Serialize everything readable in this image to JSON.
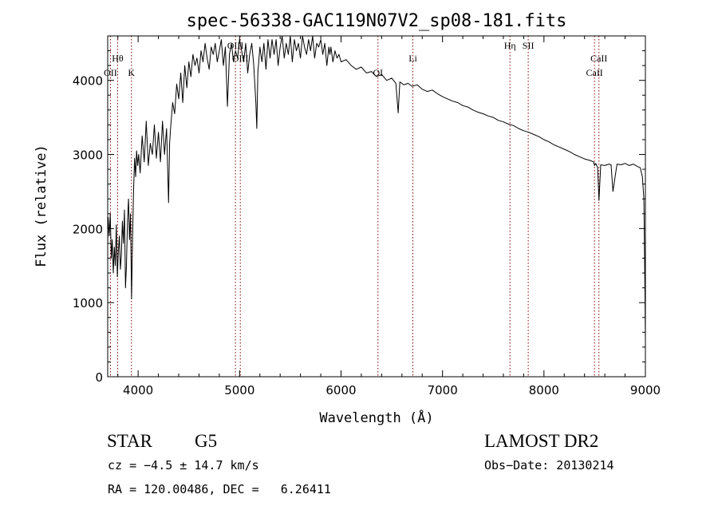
{
  "chart_data": {
    "type": "line",
    "title": "spec-56338-GAC119N07V2_sp08-181.fits",
    "xlabel": "Wavelength (Å)",
    "ylabel": "Flux (relative)",
    "xlim": [
      3700,
      9000
    ],
    "ylim": [
      0,
      4600
    ],
    "x_ticks": [
      4000,
      5000,
      6000,
      7000,
      8000,
      9000
    ],
    "y_ticks": [
      0,
      1000,
      2000,
      3000,
      4000
    ],
    "grid": false,
    "line_color": "#000000",
    "marker_color": "#8b0000",
    "spectral_lines": [
      {
        "label": "Hθ",
        "wavelength": 3798,
        "row": 1
      },
      {
        "label": "OII",
        "wavelength": 3727,
        "row": 2
      },
      {
        "label": "K",
        "wavelength": 3934,
        "row": 2
      },
      {
        "label": "OIII",
        "wavelength": 4959,
        "row": 0
      },
      {
        "label": "OIII",
        "wavelength": 5007,
        "row": 1
      },
      {
        "label": "OI",
        "wavelength": 6364,
        "row": 2
      },
      {
        "label": "Li",
        "wavelength": 6708,
        "row": 1
      },
      {
        "label": "Hη",
        "wavelength": 7665,
        "row": 0
      },
      {
        "label": "SII",
        "wavelength": 7845,
        "row": 0
      },
      {
        "label": "CaII",
        "wavelength": 8542,
        "row": 1
      },
      {
        "label": "CaII",
        "wavelength": 8498,
        "row": 2
      }
    ],
    "series": [
      {
        "x": [
          3700,
          3705,
          3715,
          3725,
          3735,
          3745,
          3755,
          3765,
          3775,
          3785,
          3795,
          3805,
          3815,
          3825,
          3835,
          3845,
          3855,
          3865,
          3875,
          3885,
          3895,
          3905,
          3915,
          3925,
          3935,
          3945,
          3955,
          3965,
          3975,
          3985,
          3995,
          4005,
          4020,
          4040,
          4060,
          4080,
          4100,
          4120,
          4140,
          4160,
          4180,
          4200,
          4220,
          4240,
          4260,
          4280,
          4300,
          4310,
          4320,
          4340,
          4360,
          4380,
          4400,
          4420,
          4440,
          4460,
          4480,
          4500,
          4520,
          4540,
          4560,
          4580,
          4600,
          4620,
          4640,
          4660,
          4680,
          4700,
          4720,
          4740,
          4760,
          4780,
          4800,
          4820,
          4840,
          4860,
          4880,
          4900,
          4920,
          4940,
          4960,
          4980,
          5000,
          5020,
          5040,
          5060,
          5080,
          5100,
          5120,
          5140,
          5160,
          5170,
          5180,
          5200,
          5220,
          5240,
          5260,
          5280,
          5300,
          5320,
          5340,
          5360,
          5380,
          5400,
          5420,
          5440,
          5460,
          5480,
          5500,
          5520,
          5540,
          5560,
          5580,
          5600,
          5620,
          5640,
          5660,
          5680,
          5700,
          5720,
          5740,
          5760,
          5780,
          5800,
          5820,
          5840,
          5860,
          5880,
          5890,
          5900,
          5920,
          5940,
          5960,
          5980,
          6000,
          6050,
          6100,
          6150,
          6200,
          6250,
          6300,
          6350,
          6400,
          6450,
          6500,
          6540,
          6563,
          6580,
          6620,
          6660,
          6700,
          6750,
          6800,
          6850,
          6900,
          6950,
          7000,
          7050,
          7100,
          7150,
          7200,
          7250,
          7300,
          7350,
          7400,
          7450,
          7500,
          7550,
          7600,
          7650,
          7700,
          7750,
          7800,
          7850,
          7900,
          7950,
          8000,
          8050,
          8100,
          8150,
          8200,
          8250,
          8300,
          8350,
          8400,
          8450,
          8490,
          8498,
          8510,
          8530,
          8542,
          8560,
          8600,
          8640,
          8662,
          8680,
          8720,
          8760,
          8800,
          8840,
          8880,
          8920,
          8950,
          8970,
          8985,
          8995,
          9000
        ],
        "y": [
          1800,
          2150,
          1900,
          2200,
          1600,
          1850,
          1400,
          1750,
          1500,
          2050,
          1350,
          1700,
          1900,
          1450,
          1650,
          2100,
          1800,
          2250,
          1200,
          1500,
          2100,
          2400,
          1850,
          2200,
          1050,
          1900,
          2500,
          2950,
          2700,
          3050,
          2850,
          3000,
          2750,
          3250,
          2900,
          3450,
          2850,
          3150,
          3000,
          3400,
          2950,
          3300,
          2900,
          3450,
          3000,
          3350,
          2350,
          3150,
          3350,
          3700,
          3550,
          3950,
          3750,
          4100,
          3700,
          4200,
          3900,
          4250,
          4050,
          4350,
          4200,
          4300,
          4100,
          4400,
          4250,
          4500,
          4300,
          4150,
          4450,
          4350,
          4500,
          4250,
          4400,
          4550,
          4200,
          4450,
          3650,
          4350,
          4500,
          4250,
          4400,
          4300,
          4550,
          4400,
          4250,
          4500,
          4100,
          4350,
          4500,
          4200,
          3700,
          3350,
          4100,
          4450,
          4250,
          4500,
          4150,
          4550,
          4300,
          4550,
          4350,
          4550,
          4200,
          4450,
          4600,
          4300,
          4500,
          4350,
          4600,
          4250,
          4550,
          4400,
          4500,
          4300,
          4600,
          4450,
          4350,
          4550,
          4400,
          4600,
          4300,
          4500,
          4450,
          4550,
          4350,
          4500,
          4200,
          4450,
          4350,
          4450,
          4250,
          4400,
          4300,
          4350,
          4250,
          4280,
          4200,
          4150,
          4180,
          4100,
          4120,
          4050,
          4080,
          4000,
          4030,
          3960,
          3560,
          3980,
          3940,
          3960,
          3920,
          3940,
          3880,
          3850,
          3870,
          3820,
          3780,
          3750,
          3720,
          3700,
          3660,
          3640,
          3600,
          3570,
          3550,
          3520,
          3500,
          3460,
          3440,
          3410,
          3390,
          3350,
          3320,
          3300,
          3270,
          3240,
          3200,
          3170,
          3130,
          3100,
          3070,
          3040,
          3000,
          2970,
          2940,
          2920,
          2900,
          2850,
          2880,
          2820,
          2380,
          2860,
          2850,
          2870,
          2860,
          2500,
          2870,
          2860,
          2880,
          2850,
          2870,
          2840,
          2820,
          2700,
          2400,
          1200,
          500
        ]
      }
    ],
    "annotations": {
      "object_type": "STAR",
      "subclass": "G5",
      "survey": "LAMOST DR2",
      "cz": "cz = −4.5 ± 14.7 km/s",
      "obs_date": "Obs−Date: 20130214",
      "radec": "RA = 120.00486, DEC =   6.26411"
    }
  }
}
